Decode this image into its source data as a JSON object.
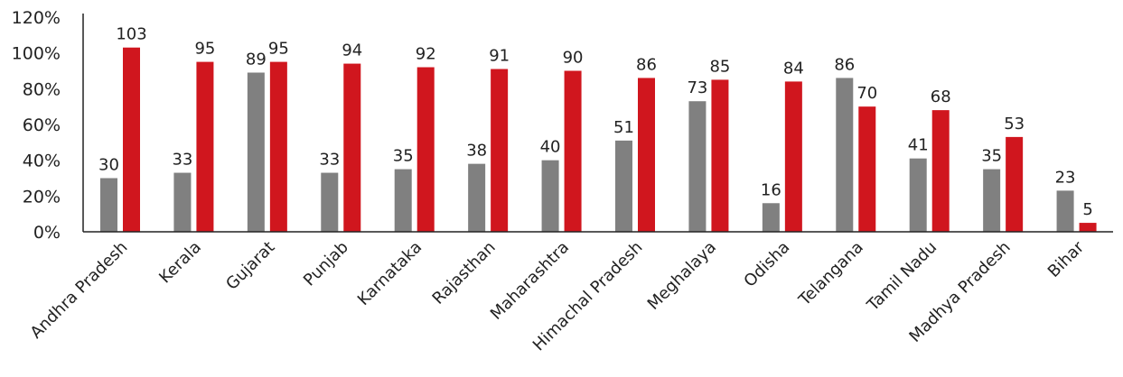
{
  "chart_data": {
    "type": "bar",
    "categories": [
      "Andhra Pradesh",
      "Kerala",
      "Gujarat",
      "Punjab",
      "Karnataka",
      "Rajasthan",
      "Maharashtra",
      "Himachal Pradesh",
      "Meghalaya",
      "Odisha",
      "Telangana",
      "Tamil Nadu",
      "Madhya Pradesh",
      "Bihar"
    ],
    "series": [
      {
        "color": "#808080",
        "values": [
          30,
          33,
          89,
          33,
          35,
          38,
          40,
          51,
          73,
          16,
          86,
          41,
          35,
          23
        ],
        "labels": [
          "30",
          "33",
          "89",
          "33",
          "35",
          "38",
          "40",
          "51",
          "73",
          "16",
          "86",
          "41",
          "35",
          "23"
        ]
      },
      {
        "color": "#d0161e",
        "values": [
          103,
          95,
          95,
          94,
          92,
          91,
          90,
          86,
          85,
          84,
          70,
          68,
          53,
          5
        ],
        "labels": [
          "103",
          "95",
          "95",
          "94",
          "92",
          "91",
          "90",
          "86",
          "85",
          "84",
          "70",
          "68",
          "53",
          "5"
        ]
      }
    ],
    "y_ticks": [
      0,
      20,
      40,
      60,
      80,
      100,
      120
    ],
    "y_tick_labels": [
      "0%",
      "20%",
      "40%",
      "60%",
      "80%",
      "100%",
      "120%"
    ],
    "ylim": [
      0,
      120
    ],
    "title": "",
    "xlabel": "",
    "ylabel": "",
    "grid": false,
    "legend": "none"
  }
}
